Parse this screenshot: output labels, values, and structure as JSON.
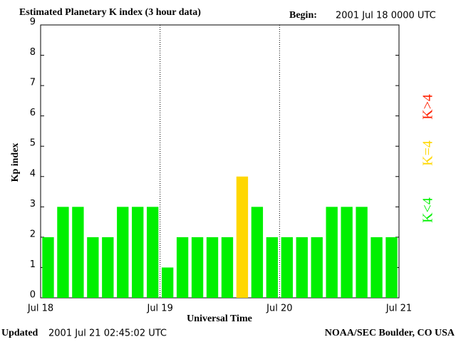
{
  "chart_data": {
    "type": "bar",
    "title": "Estimated Planetary K index (3 hour data)",
    "begin_label": "Begin:",
    "begin_value": "2001 Jul 18 0000 UTC",
    "updated_label": "Updated",
    "updated_value": "2001 Jul 21 02:45:02 UTC",
    "source": "NOAA/SEC Boulder, CO USA",
    "x_label": "Universal Time",
    "y_label": "Kp index",
    "x": [
      1.5,
      4.5,
      7.5,
      10.5,
      13.5,
      16.5,
      19.5,
      22.5,
      25.5,
      28.5,
      31.5,
      34.5,
      37.5,
      40.5,
      43.5,
      46.5,
      49.5,
      52.5,
      55.5,
      58.5,
      61.5,
      64.5,
      67.5,
      70.5
    ],
    "values": [
      2,
      3,
      3,
      2,
      2,
      3,
      3,
      3,
      1,
      2,
      2,
      2,
      2,
      4,
      3,
      2,
      2,
      2,
      2,
      3,
      3,
      3,
      2,
      2
    ],
    "colors": [
      "#00f000",
      "#00f000",
      "#00f000",
      "#00f000",
      "#00f000",
      "#00f000",
      "#00f000",
      "#00f000",
      "#00f000",
      "#00f000",
      "#00f000",
      "#00f000",
      "#00f000",
      "#ffd700",
      "#00f000",
      "#00f000",
      "#00f000",
      "#00f000",
      "#00f000",
      "#00f000",
      "#00f000",
      "#00f000",
      "#00f000",
      "#00f000"
    ],
    "xlim": [
      0,
      72
    ],
    "xticks": [
      {
        "value": 0,
        "label": "Jul 18"
      },
      {
        "value": 24,
        "label": "Jul 19"
      },
      {
        "value": 48,
        "label": "Jul 20"
      },
      {
        "value": 72,
        "label": "Jul 21"
      }
    ],
    "ylim": [
      0,
      9
    ],
    "yticks": [
      0,
      1,
      2,
      3,
      4,
      5,
      6,
      7,
      8,
      9
    ],
    "legend": [
      {
        "name": "K<4",
        "color": "#00f000"
      },
      {
        "name": "K=4",
        "color": "#ffd700"
      },
      {
        "name": "K>4",
        "color": "#ff2000"
      }
    ]
  }
}
